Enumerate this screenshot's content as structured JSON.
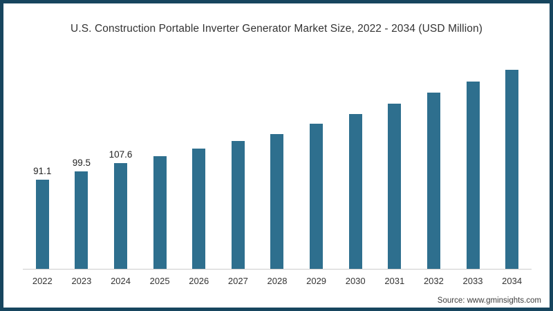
{
  "title": "U.S. Construction Portable Inverter Generator Market Size, 2022 - 2034 (USD Million)",
  "source_credit": "Source: www.gminsights.com",
  "colors": {
    "bar": "#2e6f8e",
    "frame_border": "#17455e",
    "axis_line": "#cccccc",
    "title_text": "#333333",
    "label_text": "#222222"
  },
  "chart_data": {
    "type": "bar",
    "title": "U.S. Construction Portable Inverter Generator Market Size, 2022 - 2034 (USD Million)",
    "categories": [
      "2022",
      "2023",
      "2024",
      "2025",
      "2026",
      "2027",
      "2028",
      "2029",
      "2030",
      "2031",
      "2032",
      "2033",
      "2034"
    ],
    "values": [
      91.1,
      99.5,
      107.6,
      114.6,
      122.3,
      130.1,
      137.6,
      147.7,
      157.9,
      168.7,
      179.5,
      191.1,
      203.1
    ],
    "data_labels": [
      "91.1",
      "99.5",
      "107.6",
      null,
      null,
      null,
      null,
      null,
      null,
      null,
      null,
      null,
      null
    ],
    "xlabel": "",
    "ylabel": "",
    "ylim": [
      0,
      210
    ],
    "grid": false,
    "legend": false,
    "y_axis_visible": false
  }
}
